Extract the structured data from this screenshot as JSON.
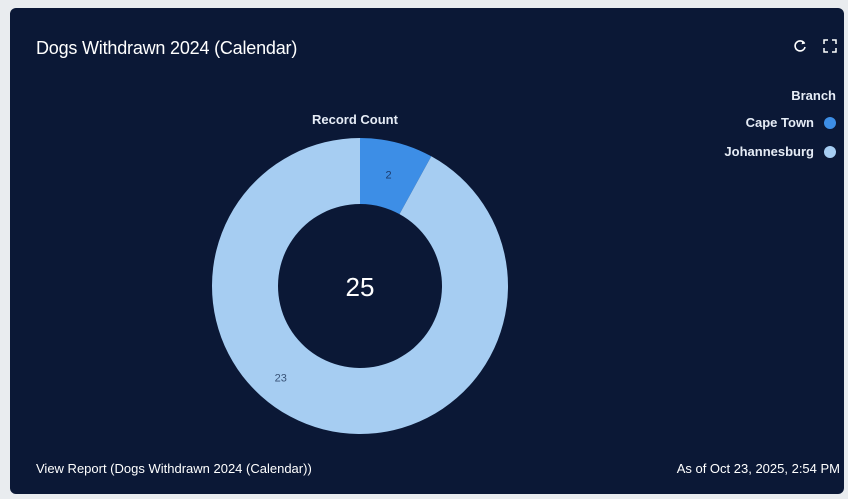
{
  "card": {
    "title": "Dogs Withdrawn 2024 (Calendar)",
    "refresh_icon": "refresh-icon",
    "expand_icon": "expand-icon"
  },
  "chart_label": "Record Count",
  "chart_data": {
    "type": "pie",
    "subtype": "donut",
    "categories": [
      "Cape Town",
      "Johannesburg"
    ],
    "values": [
      2,
      23
    ],
    "colors": [
      "#3d8ee6",
      "#a6cdf2"
    ],
    "total": "25",
    "title": "Record Count",
    "legend_title": "Branch",
    "legend_position": "top-right"
  },
  "legend": {
    "title": "Branch",
    "items": [
      {
        "label": "Cape Town",
        "color": "#3d8ee6"
      },
      {
        "label": "Johannesburg",
        "color": "#a6cdf2"
      }
    ]
  },
  "footer": {
    "view_report": "View Report (Dogs Withdrawn 2024 (Calendar))",
    "as_of": "As of Oct 23, 2025, 2:54 PM"
  }
}
